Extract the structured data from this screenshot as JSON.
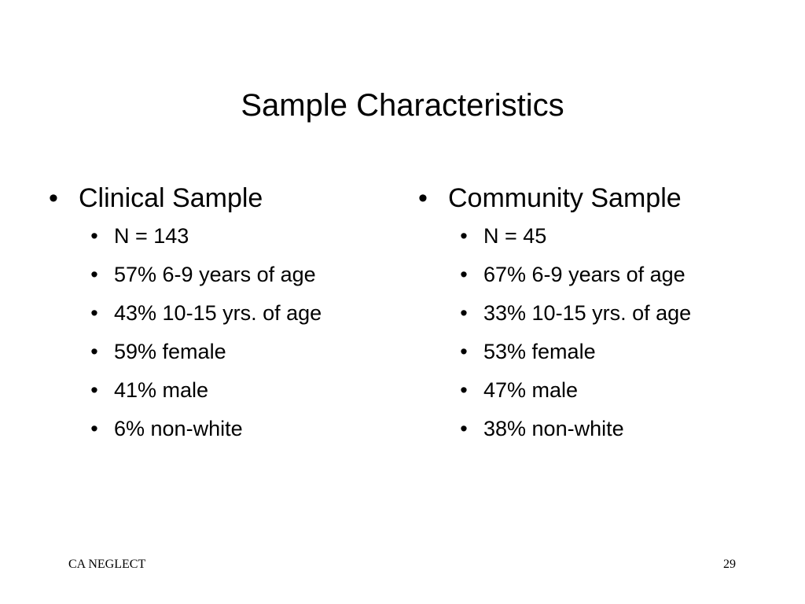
{
  "slide": {
    "title": "Sample Characteristics",
    "bullet_glyph": "•"
  },
  "clinical": {
    "heading": "Clinical Sample",
    "items": [
      "N = 143",
      "57% 6-9 years of age",
      "43% 10-15 yrs. of age",
      "59% female",
      "41% male",
      "6% non-white"
    ]
  },
  "community": {
    "heading": "Community Sample",
    "items": [
      "N = 45",
      "67% 6-9 years of age",
      "33% 10-15 yrs. of age",
      "53% female",
      "47% male",
      "38% non-white"
    ]
  },
  "footer": {
    "left": "CA NEGLECT",
    "page_number": "29"
  }
}
